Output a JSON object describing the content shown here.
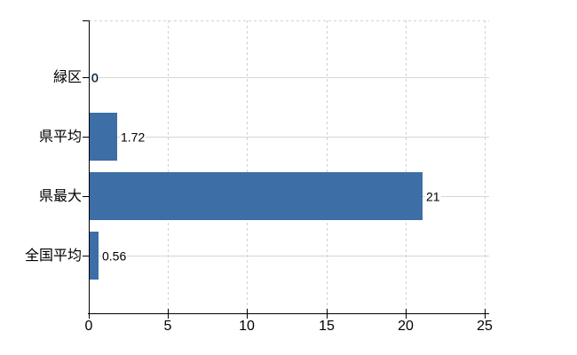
{
  "chart_data": {
    "type": "bar",
    "orientation": "horizontal",
    "title": "",
    "xlabel": "",
    "ylabel": "",
    "categories": [
      "緑区",
      "県平均",
      "県最大",
      "全国平均"
    ],
    "values": [
      0,
      1.72,
      21,
      0.56
    ],
    "value_labels": [
      "0",
      "1.72",
      "21",
      "0.56"
    ],
    "x_ticks": [
      0,
      5,
      10,
      15,
      20,
      25
    ],
    "x_tick_labels": [
      "0",
      "5",
      "10",
      "15",
      "20",
      "25"
    ],
    "xlim": [
      0,
      25
    ],
    "legend": "none",
    "grid": {
      "vertical": "dashed",
      "horizontal": "solid-at-category-centers",
      "top_border": "dashed",
      "right_border": "dashed"
    },
    "colors": {
      "bar": "#3d6ea6",
      "grid_solid": "#d4d7d2",
      "grid_dashed": "#d2d2d2",
      "axis": "#000000",
      "text": "#000000",
      "background": "#ffffff",
      "zero_label_halo": "#8fbce8"
    }
  }
}
